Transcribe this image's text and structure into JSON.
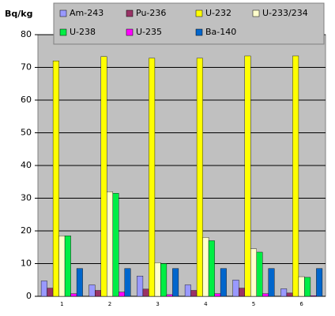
{
  "chart_data": {
    "type": "bar",
    "y_label": "Bq/kg",
    "categories": [
      "1",
      "2",
      "3",
      "4",
      "5",
      "6"
    ],
    "series": [
      {
        "name": "Am-243",
        "color": "#9999ff",
        "values": [
          4.7,
          3.5,
          6.2,
          3.5,
          5,
          2.3
        ]
      },
      {
        "name": "Pu-236",
        "color": "#993366",
        "values": [
          2.5,
          1.8,
          2.2,
          1.8,
          2.5,
          1
        ]
      },
      {
        "name": "U-232",
        "color": "#ffff00",
        "values": [
          72,
          73.3,
          72.8,
          72.8,
          73.5,
          73.5
        ]
      },
      {
        "name": "U-233/234",
        "color": "#ffffcc",
        "values": [
          18.5,
          32,
          10.3,
          18,
          14.5,
          6
        ]
      },
      {
        "name": "U-238",
        "color": "#00ee44",
        "values": [
          18.5,
          31.5,
          10,
          17,
          13.5,
          5.8
        ]
      },
      {
        "name": "U-235",
        "color": "#ff00ff",
        "values": [
          0.8,
          1.3,
          0.5,
          0.8,
          0.8,
          0.2
        ]
      },
      {
        "name": "Ba-140",
        "color": "#0066cc",
        "values": [
          8.5,
          8.5,
          8.5,
          8.5,
          8.5,
          8.5
        ]
      }
    ],
    "ylim": [
      0,
      80
    ],
    "yticks": [
      0,
      10,
      20,
      30,
      40,
      50,
      60,
      70,
      80
    ],
    "grid": true,
    "legend": "top"
  }
}
